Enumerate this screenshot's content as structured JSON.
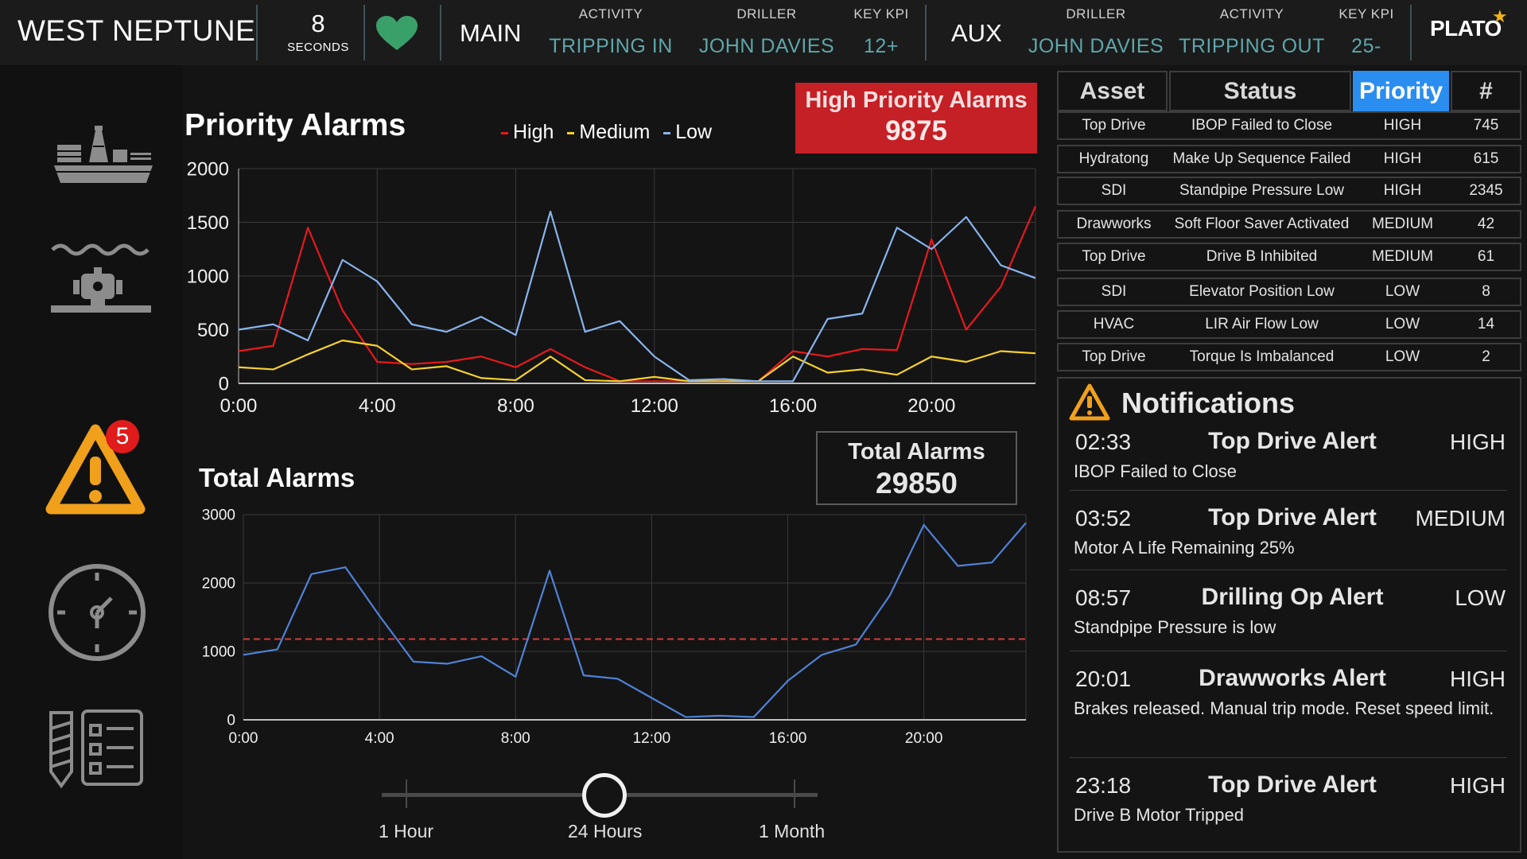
{
  "header": {
    "site_name": "WEST NEPTUNE",
    "refresh_seconds": "8",
    "refresh_unit": "SECONDS",
    "heartbeat_icon": "heart-icon",
    "main": {
      "label": "MAIN",
      "activity_label": "ACTIVITY",
      "activity_value": "TRIPPING IN",
      "driller_label": "DRILLER",
      "driller_value": "JOHN DAVIES",
      "kpi_label": "KEY KPI",
      "kpi_value": "12+"
    },
    "aux": {
      "label": "AUX",
      "driller_label": "DRILLER",
      "driller_value": "JOHN DAVIES",
      "activity_label": "ACTIVITY",
      "activity_value": "TRIPPING OUT",
      "kpi_label": "KEY KPI",
      "kpi_value": "25-"
    },
    "logo": "PLATO",
    "colors": {
      "accent_value": "#5fa6aa",
      "heart": "#3aa06a",
      "logo_star": "#f0b31b"
    }
  },
  "sidebar": {
    "items": [
      {
        "icon": "rig-ship-icon"
      },
      {
        "icon": "subsea-equipment-icon"
      },
      {
        "icon": "warning-icon",
        "badge": "5"
      },
      {
        "icon": "clock-icon"
      },
      {
        "icon": "drill-bit-checklist-icon"
      }
    ],
    "colors": {
      "warning": "#f0a01b",
      "badge": "#e01b1b"
    }
  },
  "priority_chart": {
    "title": "Priority Alarms",
    "legend": {
      "high": "High",
      "medium": "Medium",
      "low": "Low"
    },
    "high_box_label": "High Priority Alarms",
    "high_box_value": "9875",
    "colors": {
      "high": "#e8191c",
      "medium": "#f6d12e",
      "low": "#88b4ee",
      "box": "#c42026"
    }
  },
  "total_chart": {
    "title": "Total Alarms",
    "total_box_label": "Total Alarms",
    "total_box_value": "29850",
    "colors": {
      "line": "#4f82d6",
      "threshold": "#d33b3b"
    }
  },
  "slider": {
    "options": [
      "1 Hour",
      "24 Hours",
      "1 Month"
    ],
    "selected": "24 Hours"
  },
  "alarm_table": {
    "headers": [
      "Asset",
      "Status",
      "Priority",
      "#"
    ],
    "sorted_by": "Priority",
    "rows": [
      [
        "Top Drive",
        "IBOP Failed to Close",
        "HIGH",
        "745"
      ],
      [
        "Hydratong",
        "Make Up Sequence Failed",
        "HIGH",
        "615"
      ],
      [
        "SDI",
        "Standpipe Pressure Low",
        "HIGH",
        "2345"
      ],
      [
        "Drawworks",
        "Soft Floor Saver Activated",
        "MEDIUM",
        "42"
      ],
      [
        "Top Drive",
        "Drive B Inhibited",
        "MEDIUM",
        "61"
      ],
      [
        "SDI",
        "Elevator Position Low",
        "LOW",
        "8"
      ],
      [
        "HVAC",
        "LIR Air Flow Low",
        "LOW",
        "14"
      ],
      [
        "Top Drive",
        "Torque Is Imbalanced",
        "LOW",
        "2"
      ]
    ],
    "colors": {
      "header_selected": "#2a8df0"
    }
  },
  "notifications": {
    "title": "Notifications",
    "items": [
      {
        "time": "02:33",
        "title": "Top Drive Alert",
        "priority": "HIGH",
        "message": "IBOP Failed to Close"
      },
      {
        "time": "03:52",
        "title": "Top Drive Alert",
        "priority": "MEDIUM",
        "message": "Motor A Life Remaining 25%"
      },
      {
        "time": "08:57",
        "title": "Drilling Op Alert",
        "priority": "LOW",
        "message": "Standpipe Pressure is low"
      },
      {
        "time": "20:01",
        "title": "Drawworks Alert",
        "priority": "HIGH",
        "message": "Brakes released. Manual trip mode. Reset speed limit."
      },
      {
        "time": "23:18",
        "title": "Top Drive Alert",
        "priority": "HIGH",
        "message": "Drive B Motor Tripped"
      }
    ]
  },
  "chart_data": [
    {
      "type": "line",
      "title": "Priority Alarms",
      "x": [
        0,
        1,
        2,
        3,
        4,
        5,
        6,
        7,
        8,
        9,
        10,
        11,
        12,
        13,
        14,
        15,
        16,
        17,
        18,
        19,
        20,
        21,
        22,
        23
      ],
      "xticks": [
        "0:00",
        "4:00",
        "8:00",
        "12:00",
        "16:00",
        "20:00"
      ],
      "xlim": [
        0,
        23
      ],
      "ylim": [
        0,
        2000
      ],
      "yticks": [
        "0",
        "500",
        "1000",
        "1500",
        "2000"
      ],
      "grid": true,
      "legend_position": "top",
      "series": [
        {
          "name": "High",
          "values": [
            300,
            350,
            1450,
            680,
            200,
            180,
            200,
            250,
            150,
            320,
            150,
            20,
            20,
            20,
            20,
            20,
            300,
            250,
            320,
            310,
            1340,
            500,
            900,
            1650
          ]
        },
        {
          "name": "Medium",
          "values": [
            150,
            130,
            270,
            400,
            350,
            130,
            160,
            50,
            30,
            250,
            30,
            20,
            60,
            20,
            20,
            20,
            250,
            100,
            130,
            80,
            250,
            200,
            300,
            280
          ]
        },
        {
          "name": "Low",
          "values": [
            500,
            550,
            400,
            1150,
            950,
            550,
            480,
            620,
            450,
            1600,
            480,
            580,
            250,
            30,
            40,
            20,
            20,
            600,
            650,
            1450,
            1250,
            1550,
            1100,
            980
          ]
        }
      ]
    },
    {
      "type": "line",
      "title": "Total Alarms",
      "x": [
        0,
        1,
        2,
        3,
        4,
        5,
        6,
        7,
        8,
        9,
        10,
        11,
        12,
        13,
        14,
        15,
        16,
        17,
        18,
        19,
        20,
        21,
        22,
        23
      ],
      "xticks": [
        "0:00",
        "4:00",
        "8:00",
        "12:00",
        "16:00",
        "20:00"
      ],
      "xlim": [
        0,
        23
      ],
      "ylim": [
        0,
        3000
      ],
      "yticks": [
        "0",
        "1000",
        "2000",
        "3000"
      ],
      "grid": true,
      "threshold": 1180,
      "series": [
        {
          "name": "Total",
          "values": [
            950,
            1030,
            2130,
            2230,
            1520,
            850,
            820,
            930,
            630,
            2180,
            650,
            600,
            320,
            40,
            60,
            40,
            570,
            950,
            1100,
            1820,
            2850,
            2250,
            2300,
            2880
          ]
        }
      ]
    }
  ]
}
